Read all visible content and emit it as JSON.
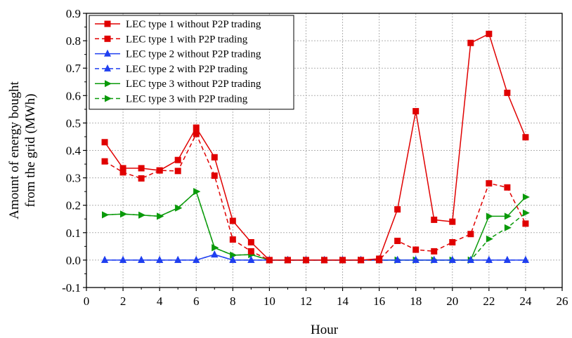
{
  "chart_data": {
    "type": "line",
    "title": "",
    "xlabel": "Hour",
    "ylabel": [
      "Amount of energy bought",
      "from the grid (MWh)"
    ],
    "xlim": [
      0,
      26
    ],
    "ylim": [
      -0.1,
      0.9
    ],
    "xticks": [
      0,
      2,
      4,
      6,
      8,
      10,
      12,
      14,
      16,
      18,
      20,
      22,
      24,
      26
    ],
    "yticks": [
      -0.1,
      0.0,
      0.1,
      0.2,
      0.3,
      0.4,
      0.5,
      0.6,
      0.7,
      0.8,
      0.9
    ],
    "ytick_labels": [
      "-0.1",
      "0.0",
      "0.1",
      "0.2",
      "0.3",
      "0.4",
      "0.5",
      "0.6",
      "0.7",
      "0.8",
      "0.9"
    ],
    "grid": true,
    "legend_position": "top-left",
    "x": [
      1,
      2,
      3,
      4,
      5,
      6,
      7,
      8,
      9,
      10,
      11,
      12,
      13,
      14,
      15,
      16,
      17,
      18,
      19,
      20,
      21,
      22,
      23,
      24
    ],
    "series": [
      {
        "name": "LEC type 1 without P2P trading",
        "color": "#e00000",
        "dash": "solid",
        "marker": "square",
        "values": [
          0.43,
          0.335,
          0.335,
          0.327,
          0.365,
          0.483,
          0.375,
          0.143,
          0.065,
          0.0,
          0.0,
          0.0,
          0.0,
          0.0,
          0.0,
          0.005,
          0.185,
          0.543,
          0.147,
          0.14,
          0.792,
          0.825,
          0.61,
          0.448
        ]
      },
      {
        "name": "LEC type 1 with P2P trading",
        "color": "#e00000",
        "dash": "dashed",
        "marker": "square",
        "values": [
          0.36,
          0.32,
          0.298,
          0.327,
          0.325,
          0.46,
          0.308,
          0.075,
          0.032,
          0.0,
          0.0,
          0.0,
          0.0,
          0.0,
          0.0,
          0.0,
          0.07,
          0.038,
          0.032,
          0.065,
          0.095,
          0.28,
          0.265,
          0.133
        ]
      },
      {
        "name": "LEC type 2 without P2P trading",
        "color": "#1f3ff0",
        "dash": "solid",
        "marker": "triangle-up",
        "values": [
          0.0,
          0.0,
          0.0,
          0.0,
          0.0,
          0.0,
          0.02,
          0.0,
          0.0,
          0.0,
          0.0,
          0.0,
          0.0,
          0.0,
          0.0,
          0.0,
          0.0,
          0.0,
          0.0,
          0.0,
          0.0,
          0.0,
          0.0,
          0.0
        ]
      },
      {
        "name": "LEC type 2 with P2P trading",
        "color": "#1f3ff0",
        "dash": "dashed",
        "marker": "triangle-up",
        "values": [
          0.0,
          0.0,
          0.0,
          0.0,
          0.0,
          0.0,
          0.02,
          0.0,
          0.0,
          0.0,
          0.0,
          0.0,
          0.0,
          0.0,
          0.0,
          0.0,
          0.0,
          0.0,
          0.0,
          0.0,
          0.0,
          0.0,
          0.0,
          0.0
        ]
      },
      {
        "name": "LEC type 3 without P2P trading",
        "color": "#0a9a0a",
        "dash": "solid",
        "marker": "triangle-right",
        "values": [
          0.165,
          0.168,
          0.164,
          0.16,
          0.19,
          0.25,
          0.045,
          0.018,
          0.02,
          0.0,
          0.0,
          0.0,
          0.0,
          0.0,
          0.0,
          0.0,
          0.0,
          0.0,
          0.0,
          0.0,
          0.0,
          0.16,
          0.16,
          0.23
        ]
      },
      {
        "name": "LEC type 3 with P2P trading",
        "color": "#0a9a0a",
        "dash": "dashed",
        "marker": "triangle-right",
        "values": [
          0.165,
          0.168,
          0.164,
          0.16,
          0.19,
          0.25,
          0.045,
          0.018,
          0.02,
          0.0,
          0.0,
          0.0,
          0.0,
          0.0,
          0.0,
          0.0,
          0.0,
          0.0,
          0.0,
          0.0,
          0.0,
          0.077,
          0.118,
          0.172
        ]
      }
    ]
  }
}
